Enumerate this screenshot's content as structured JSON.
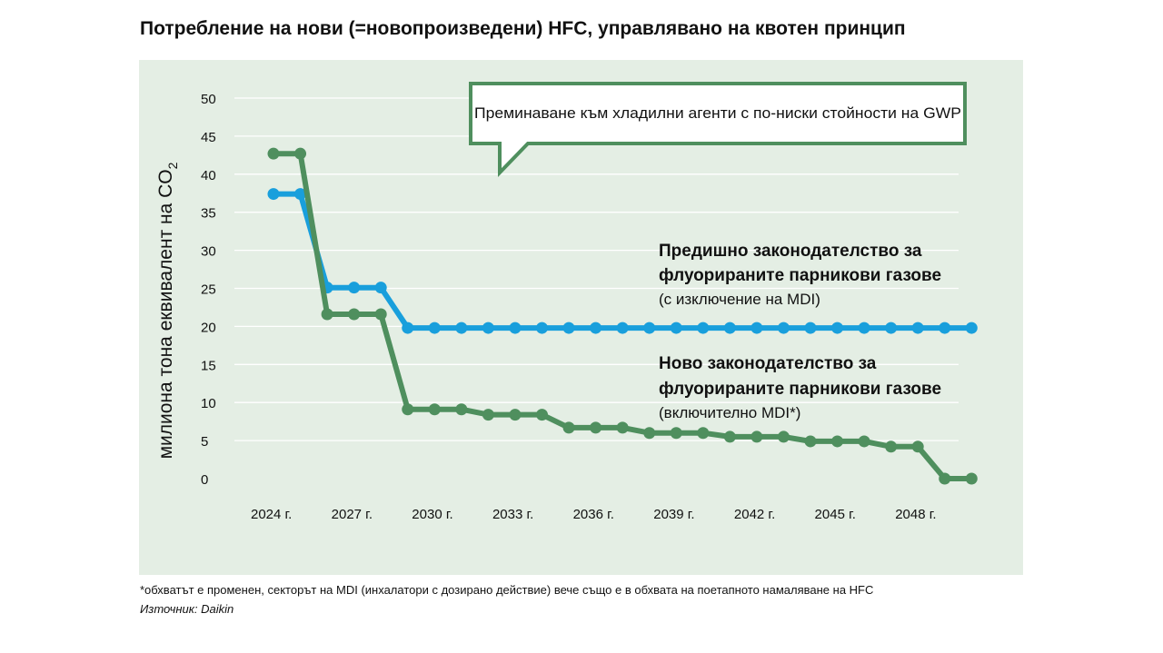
{
  "title": "Потребление на нови (=новопроизведени) HFC, управлявано на квотен принцип",
  "footnote": "*обхватът е променен, секторът на MDI (инхалатори с дозирано действие) вече също е в обхвата на поетапното намаляване на HFC",
  "source": "Източник: Daikin",
  "colors": {
    "panel_bg": "#e4eee4",
    "blue": "#199fdc",
    "green": "#4f8f5e",
    "grid": "#ffffff"
  },
  "chart_data": {
    "type": "line",
    "title": "",
    "ylabel": "милиона тона еквивалент на CO₂",
    "ylabel_main": "милиона тона еквивалент на CO",
    "ylabel_sub": "2",
    "ylim": [
      0,
      50
    ],
    "yticks": [
      0,
      5,
      10,
      15,
      20,
      25,
      30,
      35,
      40,
      45,
      50
    ],
    "xlim": [
      2024,
      2050
    ],
    "xticks": [
      2024,
      2027,
      2030,
      2033,
      2036,
      2039,
      2042,
      2045,
      2048
    ],
    "xtick_labels": [
      "2024 г.",
      "2027 г.",
      "2030 г.",
      "2033 г.",
      "2036 г.",
      "2039 г.",
      "2042 г.",
      "2045 г.",
      "2048 г."
    ],
    "grid": "horizontal",
    "callout": "Преминаване към хладилни агенти с по-ниски стойности на GWP",
    "series": [
      {
        "color": "#199fdc",
        "label_bold_1": "Предишно законодателство за",
        "label_bold_2": "флуорираните парникови газове",
        "label_sub": "(с изключение на MDI)",
        "x": [
          2024,
          2025,
          2026,
          2027,
          2028,
          2029,
          2030,
          2031,
          2032,
          2033,
          2034,
          2035,
          2036,
          2037,
          2038,
          2039,
          2040,
          2041,
          2042,
          2043,
          2044,
          2045,
          2046,
          2047,
          2048,
          2049,
          2050
        ],
        "values": [
          37.4,
          37.4,
          25.1,
          25.1,
          25.1,
          19.8,
          19.8,
          19.8,
          19.8,
          19.8,
          19.8,
          19.8,
          19.8,
          19.8,
          19.8,
          19.8,
          19.8,
          19.8,
          19.8,
          19.8,
          19.8,
          19.8,
          19.8,
          19.8,
          19.8,
          19.8,
          19.8
        ]
      },
      {
        "color": "#4f8f5e",
        "label_bold_1": "Ново законодателство за",
        "label_bold_2": "флуорираните парникови газове",
        "label_sub": "(включително MDI*)",
        "x": [
          2024,
          2025,
          2026,
          2027,
          2028,
          2029,
          2030,
          2031,
          2032,
          2033,
          2034,
          2035,
          2036,
          2037,
          2038,
          2039,
          2040,
          2041,
          2042,
          2043,
          2044,
          2045,
          2046,
          2047,
          2048,
          2049,
          2050
        ],
        "values": [
          42.7,
          42.7,
          21.6,
          21.6,
          21.6,
          9.1,
          9.1,
          9.1,
          8.4,
          8.4,
          8.4,
          6.7,
          6.7,
          6.7,
          6.0,
          6.0,
          6.0,
          5.5,
          5.5,
          5.5,
          4.9,
          4.9,
          4.9,
          4.2,
          4.2,
          0.0,
          0.0
        ]
      }
    ]
  }
}
